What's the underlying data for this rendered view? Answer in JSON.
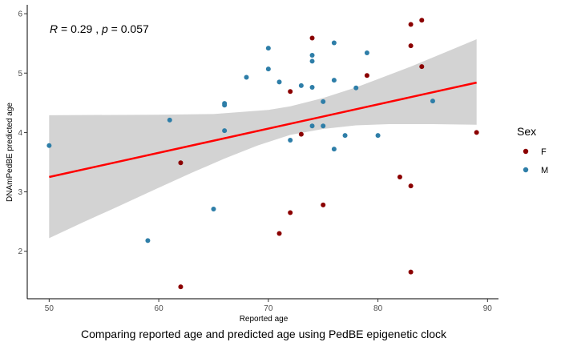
{
  "chart_data": {
    "type": "scatter",
    "caption": "Comparing reported age and predicted age using PedBE epigenetic clock",
    "xlabel": "Reported age",
    "ylabel": "DNAmPedBE predicted age",
    "xlim": [
      48,
      91
    ],
    "ylim": [
      1.2,
      6.15
    ],
    "x_ticks": [
      50,
      60,
      70,
      80,
      90
    ],
    "y_ticks": [
      2,
      3,
      4,
      5,
      6
    ],
    "grid": false,
    "annotation": {
      "r_symbol": "R",
      "r_text": " = 0.29 , ",
      "p_symbol": "p",
      "p_text": " = 0.057"
    },
    "legend": {
      "title": "Sex",
      "position": "right",
      "entries": [
        {
          "label": "F",
          "color": "#8b0000"
        },
        {
          "label": "M",
          "color": "#2e7ea8"
        }
      ]
    },
    "series": [
      {
        "name": "F",
        "color": "#8b0000",
        "points": [
          [
            62,
            3.49
          ],
          [
            62,
            1.4
          ],
          [
            71,
            2.3
          ],
          [
            72,
            2.65
          ],
          [
            72,
            4.69
          ],
          [
            73,
            3.97
          ],
          [
            74,
            5.59
          ],
          [
            75,
            2.78
          ],
          [
            79,
            4.96
          ],
          [
            82,
            3.25
          ],
          [
            83,
            5.82
          ],
          [
            83,
            5.46
          ],
          [
            83,
            3.1
          ],
          [
            83,
            1.65
          ],
          [
            84,
            5.89
          ],
          [
            84,
            5.11
          ],
          [
            89,
            4.0
          ]
        ]
      },
      {
        "name": "M",
        "color": "#2e7ea8",
        "points": [
          [
            50,
            3.78
          ],
          [
            59,
            2.18
          ],
          [
            61,
            4.21
          ],
          [
            65,
            2.71
          ],
          [
            66,
            4.49
          ],
          [
            66,
            4.46
          ],
          [
            66,
            4.03
          ],
          [
            68,
            4.93
          ],
          [
            70,
            5.42
          ],
          [
            70,
            5.07
          ],
          [
            71,
            4.85
          ],
          [
            72,
            3.87
          ],
          [
            73,
            4.79
          ],
          [
            74,
            5.3
          ],
          [
            74,
            5.2
          ],
          [
            74,
            4.76
          ],
          [
            74,
            4.11
          ],
          [
            75,
            4.52
          ],
          [
            75,
            4.11
          ],
          [
            76,
            5.51
          ],
          [
            76,
            4.88
          ],
          [
            76,
            3.72
          ],
          [
            77,
            3.95
          ],
          [
            78,
            4.75
          ],
          [
            79,
            5.34
          ],
          [
            80,
            3.95
          ],
          [
            85,
            4.53
          ]
        ]
      }
    ],
    "regression": {
      "color": "#ff0000",
      "band_color": "#d3d3d3",
      "x_range": [
        50,
        89
      ],
      "line": [
        [
          50,
          3.25
        ],
        [
          89,
          4.84
        ]
      ],
      "band_upper": [
        [
          50,
          4.29
        ],
        [
          60,
          4.3
        ],
        [
          65,
          4.31
        ],
        [
          70,
          4.38
        ],
        [
          72,
          4.44
        ],
        [
          75,
          4.58
        ],
        [
          78,
          4.76
        ],
        [
          80,
          4.9
        ],
        [
          83,
          5.11
        ],
        [
          86,
          5.34
        ],
        [
          89,
          5.57
        ]
      ],
      "band_lower": [
        [
          50,
          2.22
        ],
        [
          53,
          2.48
        ],
        [
          56,
          2.73
        ],
        [
          60,
          3.07
        ],
        [
          63,
          3.32
        ],
        [
          66,
          3.56
        ],
        [
          69,
          3.78
        ],
        [
          72,
          3.96
        ],
        [
          75,
          4.06
        ],
        [
          78,
          4.12
        ],
        [
          81,
          4.14
        ],
        [
          85,
          4.14
        ],
        [
          89,
          4.13
        ]
      ]
    }
  }
}
